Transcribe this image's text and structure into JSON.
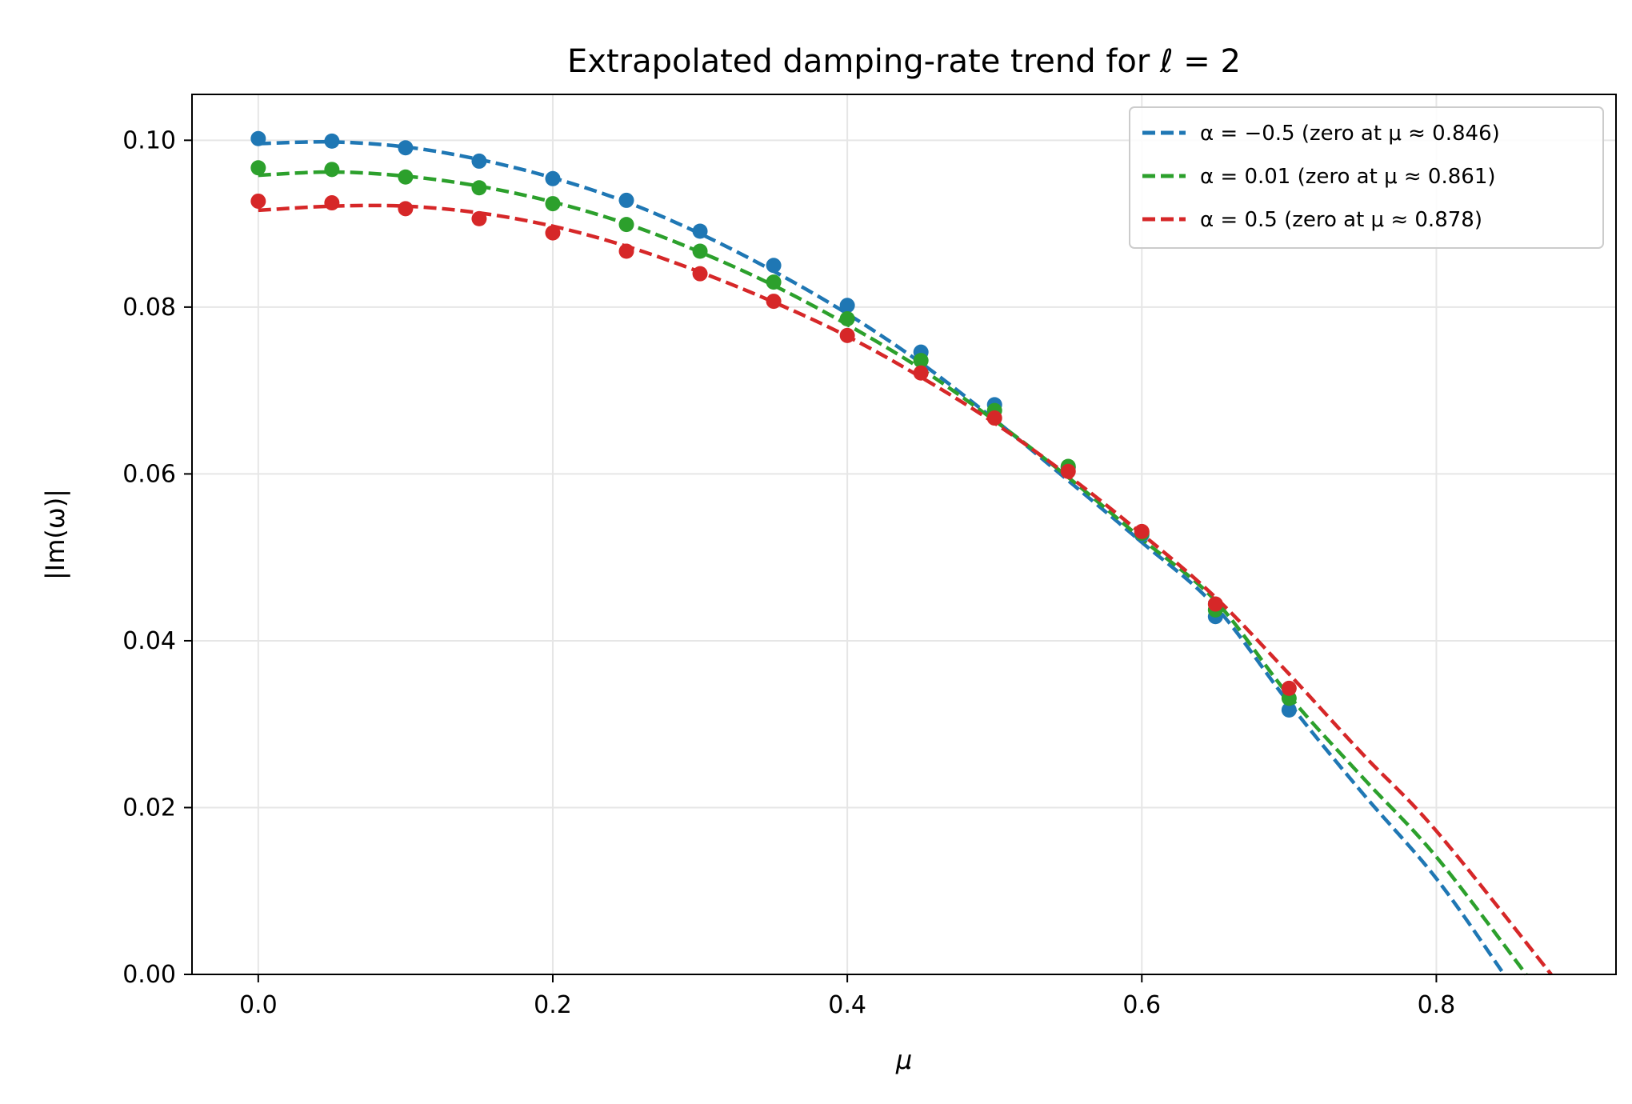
{
  "chart_data": {
    "type": "line",
    "title": "Extrapolated damping-rate trend for ℓ = 2",
    "xlabel": "μ",
    "ylabel": "|Im(ω)|",
    "xlim": [
      -0.045,
      0.922
    ],
    "ylim": [
      0.0,
      0.1055
    ],
    "xticks": [
      0.0,
      0.2,
      0.4,
      0.6,
      0.8
    ],
    "xtick_labels": [
      "0.0",
      "0.2",
      "0.4",
      "0.6",
      "0.8"
    ],
    "yticks": [
      0.0,
      0.02,
      0.04,
      0.06,
      0.08,
      0.1
    ],
    "ytick_labels": [
      "0.00",
      "0.02",
      "0.04",
      "0.06",
      "0.08",
      "0.10"
    ],
    "grid": true,
    "legend_position": "top-right",
    "x": [
      0.0,
      0.05,
      0.1,
      0.15,
      0.2,
      0.25,
      0.3,
      0.35,
      0.4,
      0.45,
      0.5,
      0.55,
      0.6,
      0.65,
      0.7
    ],
    "series": [
      {
        "name": "α = −0.5 (zero at μ ≈ 0.846)",
        "color": "#1f77b4",
        "points": [
          0.1002,
          0.0999,
          0.0991,
          0.0975,
          0.0954,
          0.0928,
          0.0891,
          0.085,
          0.0802,
          0.0746,
          0.0683,
          0.0608,
          0.0527,
          0.0429,
          0.0317
        ],
        "fit": {
          "x": [
            0.0,
            0.05,
            0.1,
            0.15,
            0.2,
            0.25,
            0.3,
            0.35,
            0.4,
            0.45,
            0.5,
            0.55,
            0.6,
            0.65,
            0.7,
            0.75,
            0.8,
            0.846
          ],
          "y": [
            0.0996,
            0.0998,
            0.0992,
            0.0977,
            0.0955,
            0.0926,
            0.0888,
            0.0843,
            0.0792,
            0.0733,
            0.0665,
            0.0592,
            0.0518,
            0.0441,
            0.0325,
            0.0217,
            0.0115,
            0.0
          ]
        }
      },
      {
        "name": "α = 0.01 (zero at μ ≈ 0.861)",
        "color": "#2ca02c",
        "points": [
          0.0967,
          0.0965,
          0.0956,
          0.0943,
          0.0924,
          0.0899,
          0.0867,
          0.083,
          0.0786,
          0.0736,
          0.0676,
          0.0609,
          0.0529,
          0.0437,
          0.0331
        ],
        "fit": {
          "x": [
            0.0,
            0.05,
            0.1,
            0.15,
            0.2,
            0.25,
            0.3,
            0.35,
            0.4,
            0.45,
            0.5,
            0.55,
            0.6,
            0.65,
            0.7,
            0.75,
            0.8,
            0.861
          ],
          "y": [
            0.0958,
            0.0962,
            0.0957,
            0.0945,
            0.0926,
            0.09,
            0.0866,
            0.0826,
            0.0779,
            0.0726,
            0.0664,
            0.0596,
            0.0522,
            0.0448,
            0.0334,
            0.0236,
            0.0141,
            0.0
          ]
        }
      },
      {
        "name": "α = 0.5 (zero at μ ≈ 0.878)",
        "color": "#d62728",
        "points": [
          0.0927,
          0.0925,
          0.0918,
          0.0906,
          0.0889,
          0.0867,
          0.084,
          0.0807,
          0.0766,
          0.0721,
          0.0667,
          0.0603,
          0.0531,
          0.0444,
          0.0343
        ],
        "fit": {
          "x": [
            0.0,
            0.05,
            0.1,
            0.15,
            0.2,
            0.25,
            0.3,
            0.35,
            0.4,
            0.45,
            0.5,
            0.55,
            0.6,
            0.65,
            0.7,
            0.75,
            0.8,
            0.878
          ],
          "y": [
            0.0916,
            0.0921,
            0.0921,
            0.0913,
            0.0897,
            0.0873,
            0.0842,
            0.0806,
            0.0765,
            0.0716,
            0.0661,
            0.0598,
            0.0528,
            0.0452,
            0.036,
            0.0264,
            0.0172,
            0.0
          ]
        }
      }
    ]
  }
}
